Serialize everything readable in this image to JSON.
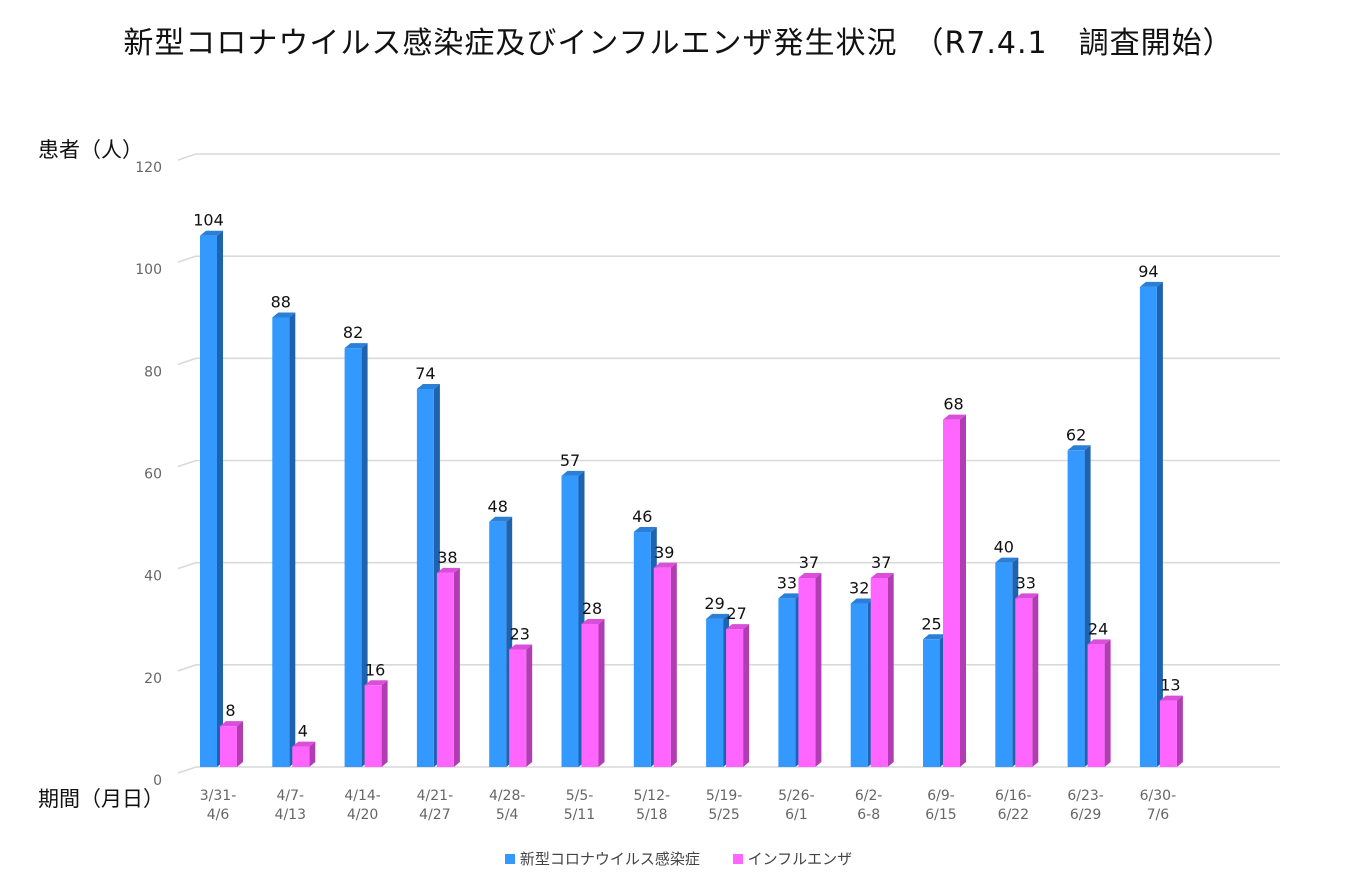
{
  "title": "新型コロナウイルス感染症及びインフルエンザ発生状況　（R7.4.1　調査開始）",
  "colors": {
    "covid_front": "#3399ff",
    "covid_side": "#1e63b0",
    "covid_top": "#2a7fd6",
    "flu_front": "#ff66ff",
    "flu_side": "#b23db2",
    "flu_top": "#d94fd9",
    "grid": "#d9d9d9",
    "tick_text": "#666666",
    "label_text": "#111111"
  },
  "chart_data": {
    "type": "bar",
    "title": "新型コロナウイルス感染症及びインフルエンザ発生状況　（R7.4.1　調査開始）",
    "ylabel": "患者（人）",
    "xlabel": "期間（月日）",
    "ylim": [
      0,
      120
    ],
    "yticks": [
      0,
      20,
      40,
      60,
      80,
      100,
      120
    ],
    "grid": true,
    "legend_position": "bottom",
    "categories": [
      [
        "3/31-",
        "4/6"
      ],
      [
        "4/7-",
        "4/13"
      ],
      [
        "4/14-",
        "4/20"
      ],
      [
        "4/21-",
        "4/27"
      ],
      [
        "4/28-",
        "5/4"
      ],
      [
        "5/5-",
        "5/11"
      ],
      [
        "5/12-",
        "5/18"
      ],
      [
        "5/19-",
        "5/25"
      ],
      [
        "5/26-",
        "6/1"
      ],
      [
        "6/2-",
        "6-8"
      ],
      [
        "6/9-",
        "6/15"
      ],
      [
        "6/16-",
        "6/22"
      ],
      [
        "6/23-",
        "6/29"
      ],
      [
        "6/30-",
        "7/6"
      ]
    ],
    "series": [
      {
        "name": "新型コロナウイルス感染症",
        "values": [
          104,
          88,
          82,
          74,
          48,
          57,
          46,
          29,
          33,
          32,
          25,
          40,
          62,
          94
        ]
      },
      {
        "name": "インフルエンザ",
        "values": [
          8,
          4,
          16,
          38,
          23,
          28,
          39,
          27,
          37,
          37,
          68,
          33,
          24,
          13
        ]
      }
    ]
  }
}
